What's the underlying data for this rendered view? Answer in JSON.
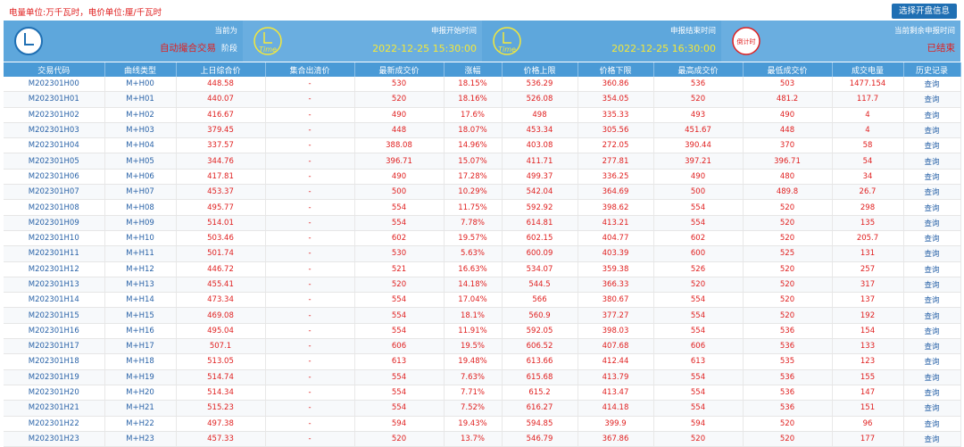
{
  "header": {
    "unit_note": "电量单位:万千瓦时，电价单位:厘/千瓦时",
    "select_button": "选择开盘信息"
  },
  "panels": [
    {
      "title": "当前为",
      "value": "自动撮合交易",
      "suffix": "阶段",
      "icon": "clock-icon",
      "value_color": "#e02020"
    },
    {
      "title": "申报开始时间",
      "value": "2022-12-25 15:30:00",
      "icon": "time-icon",
      "value_color": "#f4e83a"
    },
    {
      "title": "申报结束时间",
      "value": "2022-12-25 16:30:00",
      "icon": "time-icon",
      "value_color": "#f4e83a"
    },
    {
      "title": "当前剩余申报时间",
      "value": "已结束",
      "icon": "countdown-icon",
      "value_color": "#e02020"
    }
  ],
  "table": {
    "headers": [
      "交易代码",
      "曲线类型",
      "上日综合价",
      "集合出清价",
      "最新成交价",
      "涨幅",
      "价格上限",
      "价格下限",
      "最高成交价",
      "最低成交价",
      "成交电量",
      "历史记录"
    ],
    "rows": [
      [
        "M202301H00",
        "M+H00",
        "448.58",
        "-",
        "530",
        "18.15%",
        "536.29",
        "360.86",
        "536",
        "503",
        "1477.154",
        "查询"
      ],
      [
        "M202301H01",
        "M+H01",
        "440.07",
        "-",
        "520",
        "18.16%",
        "526.08",
        "354.05",
        "520",
        "481.2",
        "117.7",
        "查询"
      ],
      [
        "M202301H02",
        "M+H02",
        "416.67",
        "-",
        "490",
        "17.6%",
        "498",
        "335.33",
        "493",
        "490",
        "4",
        "查询"
      ],
      [
        "M202301H03",
        "M+H03",
        "379.45",
        "-",
        "448",
        "18.07%",
        "453.34",
        "305.56",
        "451.67",
        "448",
        "4",
        "查询"
      ],
      [
        "M202301H04",
        "M+H04",
        "337.57",
        "-",
        "388.08",
        "14.96%",
        "403.08",
        "272.05",
        "390.44",
        "370",
        "58",
        "查询"
      ],
      [
        "M202301H05",
        "M+H05",
        "344.76",
        "-",
        "396.71",
        "15.07%",
        "411.71",
        "277.81",
        "397.21",
        "396.71",
        "54",
        "查询"
      ],
      [
        "M202301H06",
        "M+H06",
        "417.81",
        "-",
        "490",
        "17.28%",
        "499.37",
        "336.25",
        "490",
        "480",
        "34",
        "查询"
      ],
      [
        "M202301H07",
        "M+H07",
        "453.37",
        "-",
        "500",
        "10.29%",
        "542.04",
        "364.69",
        "500",
        "489.8",
        "26.7",
        "查询"
      ],
      [
        "M202301H08",
        "M+H08",
        "495.77",
        "-",
        "554",
        "11.75%",
        "592.92",
        "398.62",
        "554",
        "520",
        "298",
        "查询"
      ],
      [
        "M202301H09",
        "M+H09",
        "514.01",
        "-",
        "554",
        "7.78%",
        "614.81",
        "413.21",
        "554",
        "520",
        "135",
        "查询"
      ],
      [
        "M202301H10",
        "M+H10",
        "503.46",
        "-",
        "602",
        "19.57%",
        "602.15",
        "404.77",
        "602",
        "520",
        "205.7",
        "查询"
      ],
      [
        "M202301H11",
        "M+H11",
        "501.74",
        "-",
        "530",
        "5.63%",
        "600.09",
        "403.39",
        "600",
        "525",
        "131",
        "查询"
      ],
      [
        "M202301H12",
        "M+H12",
        "446.72",
        "-",
        "521",
        "16.63%",
        "534.07",
        "359.38",
        "526",
        "520",
        "257",
        "查询"
      ],
      [
        "M202301H13",
        "M+H13",
        "455.41",
        "-",
        "520",
        "14.18%",
        "544.5",
        "366.33",
        "520",
        "520",
        "317",
        "查询"
      ],
      [
        "M202301H14",
        "M+H14",
        "473.34",
        "-",
        "554",
        "17.04%",
        "566",
        "380.67",
        "554",
        "520",
        "137",
        "查询"
      ],
      [
        "M202301H15",
        "M+H15",
        "469.08",
        "-",
        "554",
        "18.1%",
        "560.9",
        "377.27",
        "554",
        "520",
        "192",
        "查询"
      ],
      [
        "M202301H16",
        "M+H16",
        "495.04",
        "-",
        "554",
        "11.91%",
        "592.05",
        "398.03",
        "554",
        "536",
        "154",
        "查询"
      ],
      [
        "M202301H17",
        "M+H17",
        "507.1",
        "-",
        "606",
        "19.5%",
        "606.52",
        "407.68",
        "606",
        "536",
        "133",
        "查询"
      ],
      [
        "M202301H18",
        "M+H18",
        "513.05",
        "-",
        "613",
        "19.48%",
        "613.66",
        "412.44",
        "613",
        "535",
        "123",
        "查询"
      ],
      [
        "M202301H19",
        "M+H19",
        "514.74",
        "-",
        "554",
        "7.63%",
        "615.68",
        "413.79",
        "554",
        "536",
        "155",
        "查询"
      ],
      [
        "M202301H20",
        "M+H20",
        "514.34",
        "-",
        "554",
        "7.71%",
        "615.2",
        "413.47",
        "554",
        "536",
        "147",
        "查询"
      ],
      [
        "M202301H21",
        "M+H21",
        "515.23",
        "-",
        "554",
        "7.52%",
        "616.27",
        "414.18",
        "554",
        "536",
        "151",
        "查询"
      ],
      [
        "M202301H22",
        "M+H22",
        "497.38",
        "-",
        "594",
        "19.43%",
        "594.85",
        "399.9",
        "594",
        "520",
        "96",
        "查询"
      ],
      [
        "M202301H23",
        "M+H23",
        "457.33",
        "-",
        "520",
        "13.7%",
        "546.79",
        "367.86",
        "520",
        "520",
        "177",
        "查询"
      ]
    ]
  }
}
